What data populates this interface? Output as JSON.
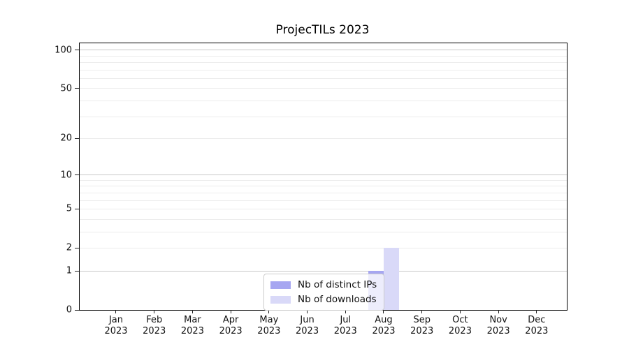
{
  "chart_data": {
    "type": "bar",
    "title": "ProjecTILs 2023",
    "categories": [
      "Jan 2023",
      "Feb 2023",
      "Mar 2023",
      "Apr 2023",
      "May 2023",
      "Jun 2023",
      "Jul 2023",
      "Aug 2023",
      "Sep 2023",
      "Oct 2023",
      "Nov 2023",
      "Dec 2023"
    ],
    "series": [
      {
        "name": "Nb of distinct IPs",
        "color": "#a6a6f1",
        "values": [
          0,
          0,
          0,
          0,
          0,
          0,
          0,
          1,
          0,
          0,
          0,
          0
        ]
      },
      {
        "name": "Nb of downloads",
        "color": "#d9d9f8",
        "values": [
          0,
          0,
          0,
          0,
          0,
          0,
          0,
          2,
          0,
          0,
          0,
          0
        ]
      }
    ],
    "xlabel": "",
    "ylabel": "",
    "yscale": "log1p",
    "ylim": [
      0,
      113
    ],
    "yticks": [
      0,
      1,
      2,
      5,
      10,
      20,
      50,
      100
    ],
    "major_gridlines": [
      1,
      10,
      100
    ],
    "minor_gridlines": [
      2,
      3,
      4,
      5,
      6,
      7,
      8,
      9,
      20,
      30,
      40,
      50,
      60,
      70,
      80,
      90
    ],
    "grid": true,
    "legend_position": "inside-bottom-center"
  },
  "colors": {
    "major_grid": "#c9c9c9",
    "minor_grid": "#ececec",
    "axis": "#000000",
    "text": "#111111",
    "legend_border": "#cccccc"
  }
}
